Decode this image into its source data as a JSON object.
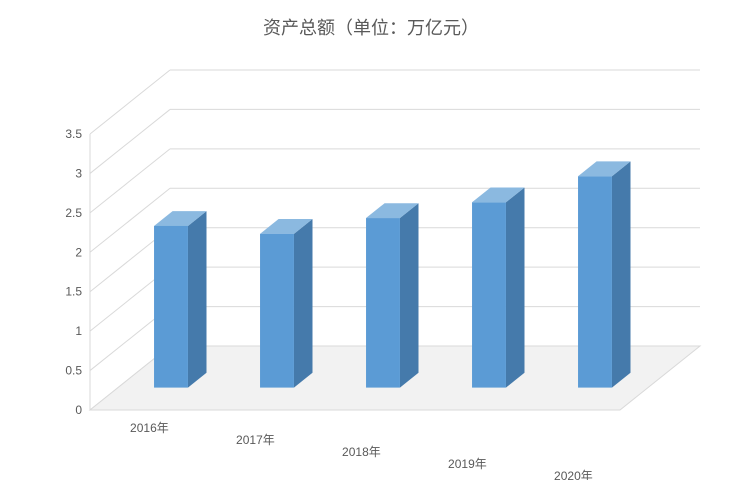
{
  "chart": {
    "type": "bar-3d",
    "title": "资产总额（单位：万亿元）",
    "title_fontsize": 18,
    "title_color": "#595959",
    "categories": [
      "2016年",
      "2017年",
      "2018年",
      "2019年",
      "2020年"
    ],
    "values": [
      2.05,
      1.95,
      2.15,
      2.35,
      2.68
    ],
    "bar_front_color": "#5b9bd5",
    "bar_top_color": "#8bb9e0",
    "bar_side_color": "#457aab",
    "floor_color": "#f2f2f2",
    "floor_edge_color": "#d9d9d9",
    "grid_color": "#d9d9d9",
    "ylim": [
      0,
      3.5
    ],
    "ytick_step": 0.5,
    "yticks": [
      "0",
      "0.5",
      "1",
      "1.5",
      "2",
      "2.5",
      "3",
      "3.5"
    ],
    "label_fontsize": 12,
    "label_color": "#595959",
    "bar_width_ratio": 0.32,
    "depth_dx": 80,
    "depth_dy": 64,
    "x_stagger": 12
  }
}
